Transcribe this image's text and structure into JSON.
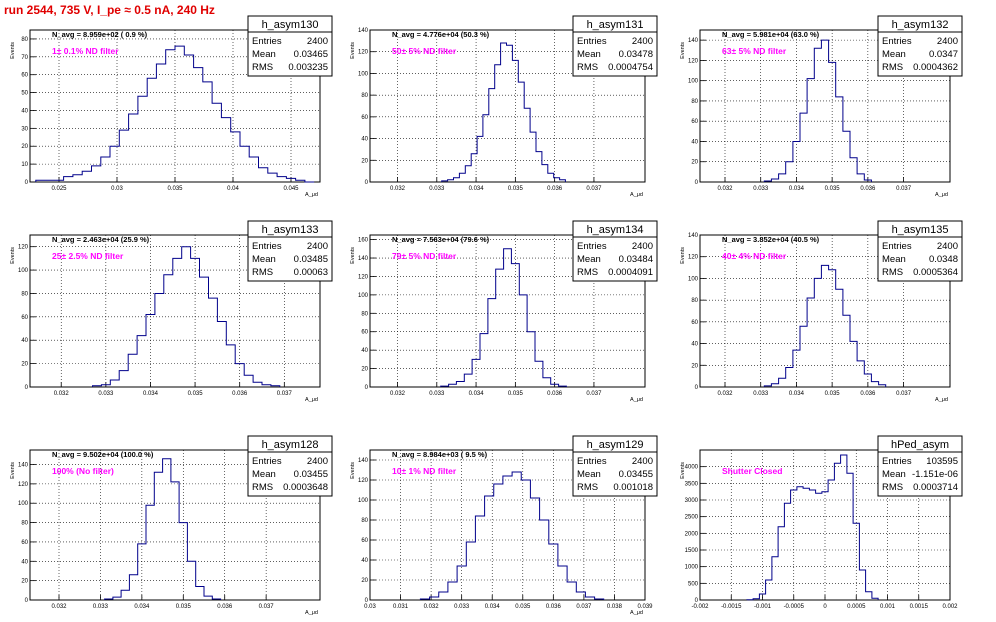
{
  "page": {
    "title": "run 2544,   735 V, I_pe ≈ 0.5 nA, 240 Hz"
  },
  "colors": {
    "histogram": "#00008b",
    "note": "#ff00ff",
    "title": "#e00000",
    "grid": "#000000"
  },
  "chart_data": [
    {
      "type": "histogram",
      "name": "h_asym130",
      "stats": {
        "Entries": "2400",
        "Mean": "0.03465",
        "RMS": "0.003235"
      },
      "header": "N_avg = 8.959e+02 ( 0.9 %)",
      "note": "1± 0.1% ND filter",
      "ylabel": "Events",
      "xlabel": "A_μd",
      "xlim": [
        0.0225,
        0.0475
      ],
      "ylim": [
        0,
        85
      ],
      "grid": true,
      "xticks": [
        "0.025",
        "0.03",
        "0.035",
        "0.04",
        "0.045"
      ],
      "yticks": [
        "0",
        "10",
        "20",
        "30",
        "40",
        "50",
        "60",
        "70",
        "80"
      ],
      "mean": 0.03465,
      "rms": 0.003235,
      "peak": 78,
      "peak_x": 0.0348,
      "bins": [
        0.0234,
        0.0242,
        0.025,
        0.0258,
        0.0266,
        0.0274,
        0.0282,
        0.029,
        0.0298,
        0.0306,
        0.0314,
        0.0322,
        0.033,
        0.0338,
        0.0346,
        0.0354,
        0.0362,
        0.037,
        0.0378,
        0.0386,
        0.0394,
        0.0402,
        0.041,
        0.0418,
        0.0426,
        0.0434,
        0.0442,
        0.045,
        0.0458,
        0.0466
      ],
      "counts": [
        1,
        1,
        1,
        3,
        4,
        6,
        9,
        14,
        20,
        29,
        38,
        48,
        58,
        66,
        74,
        76,
        71,
        64,
        56,
        44,
        36,
        28,
        20,
        14,
        8,
        5,
        3,
        2,
        1,
        0
      ]
    },
    {
      "type": "histogram",
      "name": "h_asym131",
      "stats": {
        "Entries": "2400",
        "Mean": "0.03478",
        "RMS": "0.0004754"
      },
      "header": "N_avg = 4.776e+04 (50.3 %)",
      "note": "50± 5% ND filter",
      "ylabel": "Events",
      "xlabel": "A_μd",
      "xlim": [
        0.0313,
        0.0383
      ],
      "ylim": [
        0,
        140
      ],
      "grid": true,
      "xticks": [
        "0.032",
        "0.033",
        "0.034",
        "0.035",
        "0.036",
        "0.037"
      ],
      "yticks": [
        "0",
        "20",
        "40",
        "60",
        "80",
        "100",
        "120",
        "140"
      ],
      "bins": [
        0.0332,
        0.03335,
        0.0335,
        0.03365,
        0.0338,
        0.03395,
        0.0341,
        0.03425,
        0.0344,
        0.03455,
        0.0347,
        0.03485,
        0.035,
        0.03515,
        0.0353,
        0.03545,
        0.0356,
        0.03575,
        0.0359,
        0.03605,
        0.0362
      ],
      "counts": [
        1,
        2,
        4,
        8,
        15,
        26,
        42,
        62,
        86,
        108,
        128,
        126,
        112,
        92,
        68,
        46,
        28,
        16,
        8,
        4,
        2
      ]
    },
    {
      "type": "histogram",
      "name": "h_asym132",
      "stats": {
        "Entries": "2400",
        "Mean": "0.0347",
        "RMS": "0.0004362"
      },
      "header": "N_avg = 5.981e+04 (63.0 %)",
      "note": "63± 5% ND filter",
      "ylabel": "Events",
      "xlabel": "A_μd",
      "xlim": [
        0.0313,
        0.0383
      ],
      "ylim": [
        0,
        150
      ],
      "grid": true,
      "xticks": [
        "0.032",
        "0.033",
        "0.034",
        "0.035",
        "0.036",
        "0.037"
      ],
      "yticks": [
        "0",
        "20",
        "40",
        "60",
        "80",
        "100",
        "120",
        "140"
      ],
      "bins": [
        0.0332,
        0.0334,
        0.0336,
        0.0338,
        0.034,
        0.0342,
        0.0344,
        0.0346,
        0.0348,
        0.035,
        0.0352,
        0.0354,
        0.0356,
        0.0358,
        0.036
      ],
      "counts": [
        1,
        3,
        8,
        20,
        40,
        68,
        102,
        132,
        140,
        118,
        84,
        50,
        24,
        8,
        2
      ]
    },
    {
      "type": "histogram",
      "name": "h_asym133",
      "stats": {
        "Entries": "2400",
        "Mean": "0.03485",
        "RMS": "0.00063"
      },
      "header": "N_avg = 2.463e+04 (25.9 %)",
      "note": "25± 2.5% ND filter",
      "ylabel": "Events",
      "xlabel": "A_μd",
      "xlim": [
        0.0313,
        0.0378
      ],
      "ylim": [
        0,
        130
      ],
      "grid": true,
      "xticks": [
        "0.032",
        "0.033",
        "0.034",
        "0.035",
        "0.036",
        "0.037"
      ],
      "yticks": [
        "0",
        "20",
        "40",
        "60",
        "80",
        "100",
        "120"
      ],
      "bins": [
        0.0328,
        0.033,
        0.0332,
        0.0334,
        0.0336,
        0.0338,
        0.034,
        0.0342,
        0.0344,
        0.0346,
        0.0348,
        0.035,
        0.0352,
        0.0354,
        0.0356,
        0.0358,
        0.036,
        0.0362,
        0.0364,
        0.0366,
        0.0368
      ],
      "counts": [
        1,
        2,
        6,
        14,
        28,
        44,
        62,
        80,
        96,
        110,
        120,
        110,
        94,
        76,
        56,
        36,
        20,
        10,
        4,
        2,
        1
      ]
    },
    {
      "type": "histogram",
      "name": "h_asym134",
      "stats": {
        "Entries": "2400",
        "Mean": "0.03484",
        "RMS": "0.0004091"
      },
      "header": "N_avg = 7.563e+04 (79.6 %)",
      "note": "79± 5% ND filter",
      "ylabel": "Events",
      "xlabel": "A_μd",
      "xlim": [
        0.0313,
        0.0383
      ],
      "ylim": [
        0,
        165
      ],
      "grid": true,
      "xticks": [
        "0.032",
        "0.033",
        "0.034",
        "0.035",
        "0.036",
        "0.037"
      ],
      "yticks": [
        "0",
        "20",
        "40",
        "60",
        "80",
        "100",
        "120",
        "140",
        "160"
      ],
      "bins": [
        0.0332,
        0.0334,
        0.0336,
        0.0338,
        0.034,
        0.0342,
        0.0344,
        0.0346,
        0.0348,
        0.035,
        0.0352,
        0.0354,
        0.0356,
        0.0358,
        0.036,
        0.0362
      ],
      "counts": [
        1,
        3,
        6,
        14,
        30,
        58,
        96,
        128,
        150,
        134,
        100,
        60,
        28,
        10,
        3,
        1
      ]
    },
    {
      "type": "histogram",
      "name": "h_asym135",
      "stats": {
        "Entries": "2400",
        "Mean": "0.0348",
        "RMS": "0.0005364"
      },
      "header": "N_avg = 3.852e+04 (40.5 %)",
      "note": "40± 4% ND filter",
      "ylabel": "Events",
      "xlabel": "A_μd",
      "xlim": [
        0.0313,
        0.0383
      ],
      "ylim": [
        0,
        140
      ],
      "grid": true,
      "xticks": [
        "0.032",
        "0.033",
        "0.034",
        "0.035",
        "0.036",
        "0.037"
      ],
      "yticks": [
        "0",
        "20",
        "40",
        "60",
        "80",
        "100",
        "120",
        "140"
      ],
      "bins": [
        0.0332,
        0.0334,
        0.0336,
        0.0338,
        0.034,
        0.0342,
        0.0344,
        0.0346,
        0.0348,
        0.035,
        0.0352,
        0.0354,
        0.0356,
        0.0358,
        0.036,
        0.0362,
        0.0364
      ],
      "counts": [
        1,
        3,
        8,
        18,
        34,
        56,
        82,
        100,
        112,
        108,
        90,
        66,
        42,
        24,
        12,
        5,
        2
      ]
    },
    {
      "type": "histogram",
      "name": "h_asym128",
      "stats": {
        "Entries": "2400",
        "Mean": "0.03455",
        "RMS": "0.0003648"
      },
      "header": "N_avg = 9.502e+04 (100.0 %)",
      "note": "100% (No filter)",
      "ylabel": "Events",
      "xlabel": "A_μd",
      "xlim": [
        0.0313,
        0.0383
      ],
      "ylim": [
        0,
        155
      ],
      "grid": true,
      "xticks": [
        "0.032",
        "0.033",
        "0.034",
        "0.035",
        "0.036",
        "0.037"
      ],
      "yticks": [
        "0",
        "20",
        "40",
        "60",
        "80",
        "100",
        "120",
        "140"
      ],
      "bins": [
        0.0332,
        0.0334,
        0.0336,
        0.0338,
        0.034,
        0.0342,
        0.0344,
        0.0346,
        0.0348,
        0.035,
        0.0352,
        0.0354,
        0.0356,
        0.0358
      ],
      "counts": [
        1,
        3,
        10,
        26,
        58,
        98,
        132,
        146,
        122,
        80,
        40,
        14,
        4,
        1
      ]
    },
    {
      "type": "histogram",
      "name": "h_asym129",
      "stats": {
        "Entries": "2400",
        "Mean": "0.03455",
        "RMS": "0.001018"
      },
      "header": "N_avg = 8.984e+03 ( 9.5 %)",
      "note": "10± 1% ND filter",
      "ylabel": "Events",
      "xlabel": "A_μd",
      "xlim": [
        0.03,
        0.039
      ],
      "ylim": [
        0,
        150
      ],
      "grid": true,
      "xticks": [
        "0.03",
        "0.031",
        "0.032",
        "0.033",
        "0.034",
        "0.035",
        "0.036",
        "0.037",
        "0.038",
        "0.039"
      ],
      "yticks": [
        "0",
        "20",
        "40",
        "60",
        "80",
        "100",
        "120",
        "140"
      ],
      "bins": [
        0.0318,
        0.0321,
        0.0324,
        0.0327,
        0.033,
        0.0333,
        0.0336,
        0.0339,
        0.0342,
        0.0345,
        0.0348,
        0.0351,
        0.0354,
        0.0357,
        0.036,
        0.0363,
        0.0366,
        0.0369,
        0.0372,
        0.0375
      ],
      "counts": [
        1,
        3,
        8,
        18,
        34,
        58,
        84,
        104,
        116,
        124,
        128,
        120,
        102,
        80,
        56,
        34,
        18,
        8,
        3,
        1
      ]
    },
    {
      "type": "histogram",
      "name": "hPed_asym",
      "stats": {
        "Entries": "103595",
        "Mean": "-1.151e-06",
        "RMS": "0.0003714"
      },
      "header": "",
      "note": "Shutter Closed",
      "ylabel": "Events",
      "xlabel": "",
      "xlim": [
        -0.002,
        0.002
      ],
      "ylim": [
        0,
        4500
      ],
      "grid": true,
      "xticks": [
        "-0.002",
        "-0.0015",
        "-0.001",
        "-0.0005",
        "0",
        "0.0005",
        "0.001",
        "0.0015",
        "0.002"
      ],
      "yticks": [
        "0",
        "500",
        "1000",
        "1500",
        "2000",
        "2500",
        "3000",
        "3500",
        "4000"
      ],
      "bins": [
        -0.0012,
        -0.0011,
        -0.001,
        -0.0009,
        -0.0008,
        -0.0007,
        -0.0006,
        -0.0005,
        -0.0004,
        -0.0003,
        -0.0002,
        -0.0001,
        0,
        0.0001,
        0.0002,
        0.0003,
        0.0004,
        0.0005,
        0.0006,
        0.0007,
        0.0008
      ],
      "counts": [
        5,
        40,
        180,
        600,
        1300,
        2200,
        2900,
        3300,
        3400,
        3350,
        3300,
        3200,
        3250,
        3600,
        4100,
        4350,
        3800,
        2300,
        900,
        250,
        50
      ]
    }
  ]
}
